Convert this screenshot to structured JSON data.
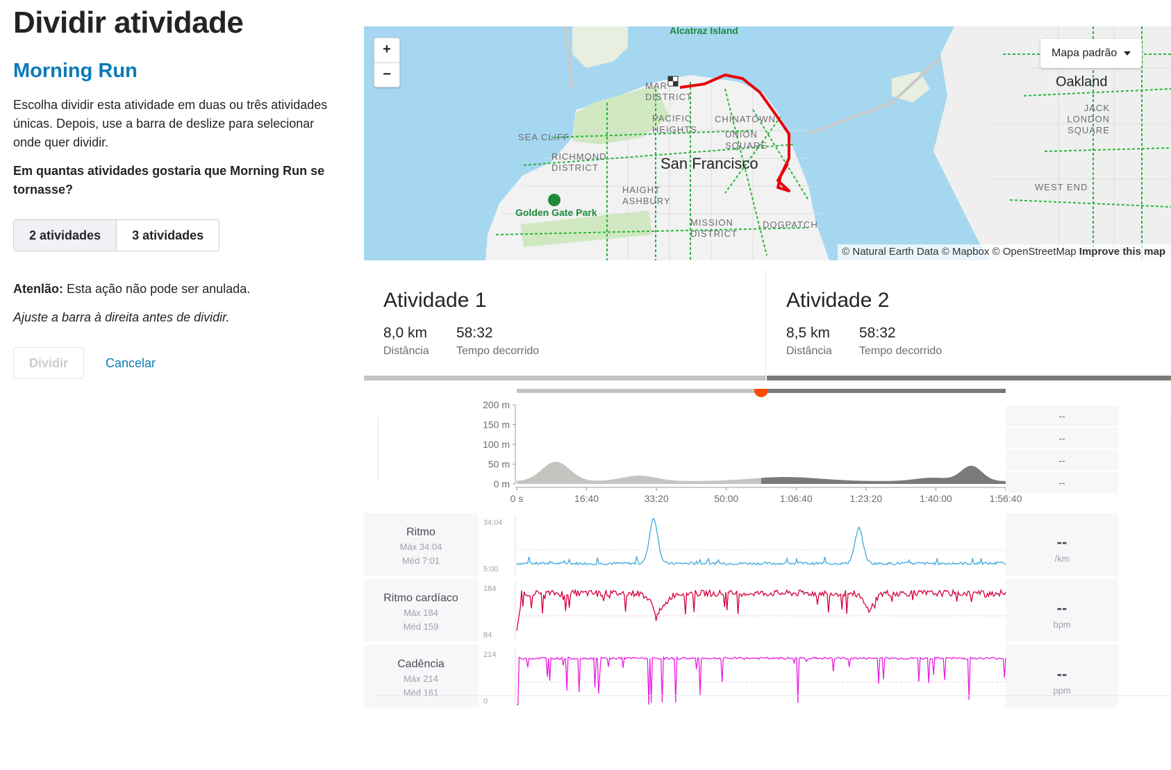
{
  "page": {
    "title": "Dividir atividade",
    "activity_name": "Morning Run",
    "intro": "Escolha dividir esta atividade em duas ou três atividades únicas. Depois, use a barra de deslize para selecionar onde quer dividir.",
    "question": "Em quantas atividades gostaria que Morning Run se tornasse?",
    "options": [
      "2 atividades",
      "3 atividades"
    ],
    "selected_option": "2 atividades",
    "warning_label": "Atenlão:",
    "warning_text": " Esta ação não pode ser anulada.",
    "hint": "Ajuste a barra à direita antes de dividir.",
    "split_label": "Dividir",
    "cancel_label": "Cancelar"
  },
  "map": {
    "zoom_in": "+",
    "zoom_out": "−",
    "style_label": "Mapa padrão",
    "labels": {
      "alcatraz": "Alcatraz Island",
      "marina": "MAR DISTRICT",
      "pacific_heights": "PACIFIC HEIGHTS",
      "chinatown": "CHINATOWN",
      "union_square": "UNION SQUARE",
      "sea_cliff": "SEA CLIFF",
      "richmond": "RICHMOND DISTRICT",
      "city": "San Francisco",
      "haight": "HAIGHT ASHBURY",
      "golden_gate": "Golden Gate Park",
      "mission": "MISSION DISTRICT",
      "dogpatch": "DOGPATCH",
      "oakland": "Oakland",
      "jack_london": "JACK LONDON SQUARE",
      "west_end": "WEST END"
    },
    "attribution": "© Natural Earth Data © Mapbox © OpenStreetMap",
    "improve": "Improve this map",
    "colors": {
      "water": "#a5d7f0",
      "land": "#f2f2f2",
      "park": "#d6ecc8",
      "route": "#e8000b",
      "trail": "#27b53c"
    }
  },
  "activities": [
    {
      "title": "Atividade 1",
      "distance": "8,0 km",
      "distance_label": "Distância",
      "time": "58:32",
      "time_label": "Tempo decorrido",
      "color": "#c4c4c0"
    },
    {
      "title": "Atividade 2",
      "distance": "8,5 km",
      "distance_label": "Distância",
      "time": "58:32",
      "time_label": "Tempo decorrido",
      "color": "#7a7a78"
    }
  ],
  "slider": {
    "position": 0.5
  },
  "elevation": {
    "y_ticks": [
      "200 m",
      "150 m",
      "100 m",
      "50 m",
      "0 m"
    ],
    "x_ticks": [
      "0 s",
      "16:40",
      "33:20",
      "50:00",
      "1:06:40",
      "1:23:20",
      "1:40:00",
      "1:56:40"
    ],
    "side_values": [
      "--",
      "--",
      "--",
      "--"
    ]
  },
  "streams": [
    {
      "name": "Ritmo",
      "max_label": "Máx 34:04",
      "avg_label": "Méd 7:01",
      "axis_top": "34:04",
      "axis_bottom": "5:00",
      "value": "--",
      "unit": "/km",
      "color": "#3ca8dc"
    },
    {
      "name": "Ritmo cardíaco",
      "max_label": "Máx 184",
      "avg_label": "Méd 159",
      "axis_top": "184",
      "axis_bottom": "84",
      "value": "--",
      "unit": "bpm",
      "color": "#d4003c"
    },
    {
      "name": "Cadência",
      "max_label": "Máx 214",
      "avg_label": "Méd 161",
      "axis_top": "214",
      "axis_bottom": "0",
      "value": "--",
      "unit": "ppm",
      "color": "#e81ee0"
    }
  ]
}
